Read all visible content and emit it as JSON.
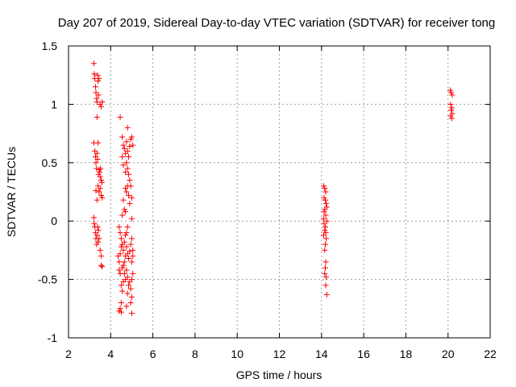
{
  "chart_data": {
    "type": "scatter",
    "title": "Day 207 of 2019, Sidereal Day-to-day VTEC variation (SDTVAR) for receiver tong",
    "xlabel": "GPS time / hours",
    "ylabel": "SDTVAR / TECUs",
    "xlim": [
      2,
      22
    ],
    "ylim": [
      -1,
      1.5
    ],
    "xticks": [
      "2",
      "4",
      "6",
      "8",
      "10",
      "12",
      "14",
      "16",
      "18",
      "20",
      "22"
    ],
    "yticks": [
      "1.5",
      "1",
      "0.5",
      "0",
      "-0.5",
      "-1"
    ],
    "xtick_values": [
      2,
      4,
      6,
      8,
      10,
      12,
      14,
      16,
      18,
      20,
      22
    ],
    "ytick_values": [
      1.5,
      1,
      0.5,
      0,
      -0.5,
      -1
    ],
    "grid": true,
    "marker": "+",
    "color": "#ff0000",
    "series": [
      {
        "name": "SDTVAR",
        "points": [
          [
            3.2,
            1.35
          ],
          [
            3.22,
            1.26
          ],
          [
            3.25,
            1.22
          ],
          [
            3.28,
            1.15
          ],
          [
            3.3,
            1.1
          ],
          [
            3.33,
            1.05
          ],
          [
            3.35,
            1.02
          ],
          [
            3.38,
            1.25
          ],
          [
            3.4,
            1.2
          ],
          [
            3.42,
            1.08
          ],
          [
            3.45,
            1.22
          ],
          [
            3.5,
            1.0
          ],
          [
            3.55,
            0.98
          ],
          [
            3.6,
            1.02
          ],
          [
            3.35,
            0.89
          ],
          [
            3.2,
            0.67
          ],
          [
            3.25,
            0.6
          ],
          [
            3.28,
            0.55
          ],
          [
            3.3,
            0.5
          ],
          [
            3.33,
            0.45
          ],
          [
            3.35,
            0.58
          ],
          [
            3.38,
            0.53
          ],
          [
            3.4,
            0.67
          ],
          [
            3.42,
            0.4
          ],
          [
            3.45,
            0.44
          ],
          [
            3.48,
            0.42
          ],
          [
            3.5,
            0.38
          ],
          [
            3.52,
            0.45
          ],
          [
            3.55,
            0.35
          ],
          [
            3.58,
            0.33
          ],
          [
            3.4,
            0.3
          ],
          [
            3.45,
            0.25
          ],
          [
            3.5,
            0.28
          ],
          [
            3.55,
            0.22
          ],
          [
            3.6,
            0.2
          ],
          [
            3.3,
            0.26
          ],
          [
            3.35,
            0.18
          ],
          [
            3.2,
            0.03
          ],
          [
            3.22,
            -0.02
          ],
          [
            3.25,
            -0.05
          ],
          [
            3.28,
            -0.1
          ],
          [
            3.3,
            -0.15
          ],
          [
            3.33,
            -0.2
          ],
          [
            3.35,
            -0.12
          ],
          [
            3.38,
            -0.05
          ],
          [
            3.4,
            -0.18
          ],
          [
            3.42,
            -0.08
          ],
          [
            3.45,
            -0.15
          ],
          [
            3.5,
            -0.25
          ],
          [
            3.55,
            -0.3
          ],
          [
            3.55,
            -0.38
          ],
          [
            3.6,
            -0.39
          ],
          [
            4.45,
            0.89
          ],
          [
            4.55,
            0.72
          ],
          [
            4.6,
            0.65
          ],
          [
            4.65,
            0.62
          ],
          [
            4.7,
            0.58
          ],
          [
            4.75,
            0.68
          ],
          [
            4.8,
            0.6
          ],
          [
            4.85,
            0.55
          ],
          [
            4.9,
            0.64
          ],
          [
            4.95,
            0.7
          ],
          [
            5.0,
            0.72
          ],
          [
            5.05,
            0.65
          ],
          [
            4.8,
            0.8
          ],
          [
            4.55,
            0.55
          ],
          [
            4.6,
            0.48
          ],
          [
            4.7,
            0.42
          ],
          [
            4.75,
            0.5
          ],
          [
            4.8,
            0.45
          ],
          [
            4.85,
            0.4
          ],
          [
            4.9,
            0.35
          ],
          [
            4.95,
            0.3
          ],
          [
            5.0,
            0.2
          ],
          [
            4.7,
            0.28
          ],
          [
            4.75,
            0.25
          ],
          [
            4.8,
            0.3
          ],
          [
            4.85,
            0.22
          ],
          [
            4.6,
            0.18
          ],
          [
            4.65,
            0.1
          ],
          [
            4.7,
            0.08
          ],
          [
            4.55,
            0.05
          ],
          [
            4.9,
            0.15
          ],
          [
            5.0,
            0.02
          ],
          [
            4.4,
            -0.05
          ],
          [
            4.45,
            -0.1
          ],
          [
            4.5,
            -0.15
          ],
          [
            4.55,
            -0.2
          ],
          [
            4.6,
            -0.25
          ],
          [
            4.65,
            -0.18
          ],
          [
            4.7,
            -0.12
          ],
          [
            4.75,
            -0.22
          ],
          [
            4.8,
            -0.28
          ],
          [
            4.85,
            -0.32
          ],
          [
            4.9,
            -0.26
          ],
          [
            4.95,
            -0.2
          ],
          [
            5.0,
            -0.15
          ],
          [
            5.05,
            -0.25
          ],
          [
            4.35,
            -0.3
          ],
          [
            4.4,
            -0.35
          ],
          [
            4.45,
            -0.28
          ],
          [
            4.5,
            -0.22
          ],
          [
            4.55,
            -0.4
          ],
          [
            4.6,
            -0.38
          ],
          [
            4.65,
            -0.45
          ],
          [
            4.7,
            -0.5
          ],
          [
            4.75,
            -0.42
          ],
          [
            4.8,
            -0.48
          ],
          [
            4.85,
            -0.55
          ],
          [
            4.9,
            -0.52
          ],
          [
            4.95,
            -0.58
          ],
          [
            5.0,
            -0.5
          ],
          [
            5.05,
            -0.45
          ],
          [
            4.5,
            -0.55
          ],
          [
            4.55,
            -0.6
          ],
          [
            4.6,
            -0.52
          ],
          [
            4.65,
            -0.35
          ],
          [
            4.7,
            -0.3
          ],
          [
            4.75,
            -0.1
          ],
          [
            4.8,
            -0.05
          ],
          [
            5.0,
            -0.35
          ],
          [
            5.05,
            -0.3
          ],
          [
            4.45,
            -0.45
          ],
          [
            4.4,
            -0.42
          ],
          [
            4.5,
            -0.7
          ],
          [
            4.45,
            -0.75
          ],
          [
            4.4,
            -0.77
          ],
          [
            4.5,
            -0.78
          ],
          [
            4.75,
            -0.73
          ],
          [
            5.0,
            -0.79
          ],
          [
            4.95,
            -0.7
          ],
          [
            5.0,
            -0.65
          ],
          [
            4.8,
            -0.62
          ],
          [
            14.1,
            0.3
          ],
          [
            14.15,
            0.28
          ],
          [
            14.2,
            0.25
          ],
          [
            14.12,
            0.2
          ],
          [
            14.18,
            0.18
          ],
          [
            14.22,
            0.15
          ],
          [
            14.15,
            0.1
          ],
          [
            14.2,
            0.05
          ],
          [
            14.1,
            0.02
          ],
          [
            14.25,
            0.0
          ],
          [
            14.12,
            -0.02
          ],
          [
            14.18,
            -0.05
          ],
          [
            14.15,
            -0.08
          ],
          [
            14.2,
            -0.1
          ],
          [
            14.1,
            -0.12
          ],
          [
            14.22,
            -0.15
          ],
          [
            14.18,
            -0.2
          ],
          [
            14.15,
            -0.25
          ],
          [
            14.2,
            -0.35
          ],
          [
            14.18,
            -0.4
          ],
          [
            14.15,
            -0.45
          ],
          [
            14.22,
            -0.48
          ],
          [
            14.2,
            -0.55
          ],
          [
            14.25,
            -0.63
          ],
          [
            14.12,
            0.08
          ],
          [
            14.25,
            0.12
          ],
          [
            20.1,
            1.12
          ],
          [
            20.15,
            1.1
          ],
          [
            20.2,
            1.08
          ],
          [
            20.12,
            1.0
          ],
          [
            20.18,
            0.97
          ],
          [
            20.15,
            0.95
          ],
          [
            20.2,
            0.92
          ],
          [
            20.12,
            0.9
          ],
          [
            20.18,
            0.88
          ]
        ]
      }
    ]
  }
}
